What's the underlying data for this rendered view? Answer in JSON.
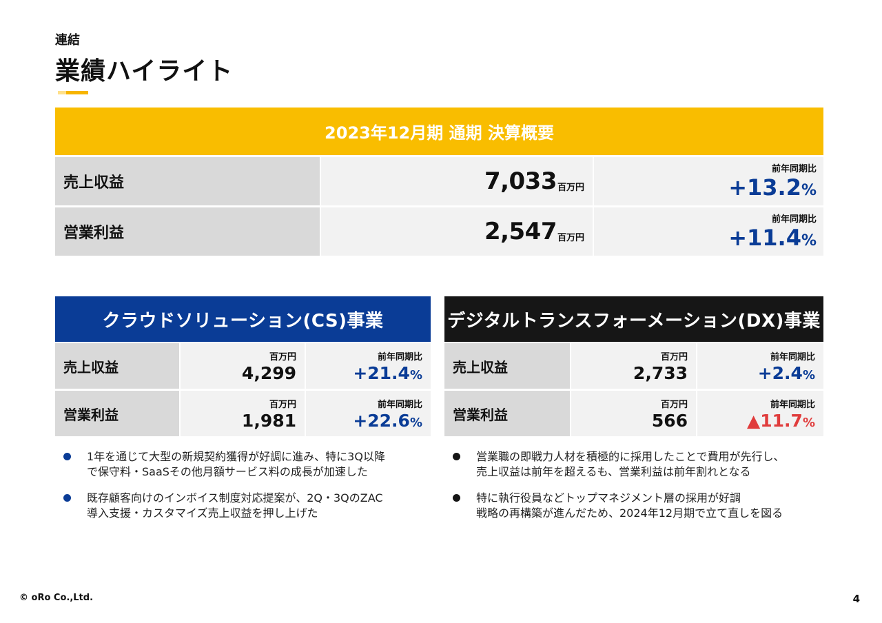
{
  "header": {
    "subtitle": "連結",
    "title": "業績ハイライト"
  },
  "colors": {
    "accent_yellow": "#f9bd00",
    "cs_blue": "#0a3c96",
    "dx_black": "#161616",
    "negative_red": "#e03c3c"
  },
  "summary": {
    "title": "2023年12月期 通期 決算概要",
    "rows": [
      {
        "label": "売上収益",
        "value": "7,033",
        "unit": "百万円",
        "yoy_caption": "前年同期比",
        "yoy": "+13.2",
        "pct": "%"
      },
      {
        "label": "営業利益",
        "value": "2,547",
        "unit": "百万円",
        "yoy_caption": "前年同期比",
        "yoy": "+11.4",
        "pct": "%"
      }
    ]
  },
  "cs": {
    "title": "クラウドソリューション(CS)事業",
    "rows": [
      {
        "label": "売上収益",
        "unit": "百万円",
        "value": "4,299",
        "yoy_caption": "前年同期比",
        "yoy": "+21.4",
        "pct": "%"
      },
      {
        "label": "営業利益",
        "unit": "百万円",
        "value": "1,981",
        "yoy_caption": "前年同期比",
        "yoy": "+22.6",
        "pct": "%"
      }
    ],
    "bullets": [
      {
        "line1": "1年を通じて大型の新規契約獲得が好調に進み、特に3Q以降",
        "line2": "で保守料・SaaSその他月額サービス料の成長が加速した"
      },
      {
        "line1": "既存顧客向けのインボイス制度対応提案が、2Q・3QのZAC",
        "line2": "導入支援・カスタマイズ売上収益を押し上げた"
      }
    ]
  },
  "dx": {
    "title": "デジタルトランスフォーメーション(DX)事業",
    "rows": [
      {
        "label": "売上収益",
        "unit": "百万円",
        "value": "2,733",
        "yoy_caption": "前年同期比",
        "yoy": "+2.4",
        "pct": "%"
      },
      {
        "label": "営業利益",
        "unit": "百万円",
        "value": "566",
        "yoy_caption": "前年同期比",
        "yoy": "▲11.7",
        "pct": "%"
      }
    ],
    "bullets": [
      {
        "line1": "営業職の即戦力人材を積極的に採用したことで費用が先行し、",
        "line2": "売上収益は前年を超えるも、営業利益は前年割れとなる"
      },
      {
        "line1": "特に執行役員などトップマネジメント層の採用が好調",
        "line2": "戦略の再構築が進んだため、2024年12月期で立て直しを図る"
      }
    ]
  },
  "footer": {
    "copyright": "© oRo Co.,Ltd.",
    "page": "4"
  }
}
